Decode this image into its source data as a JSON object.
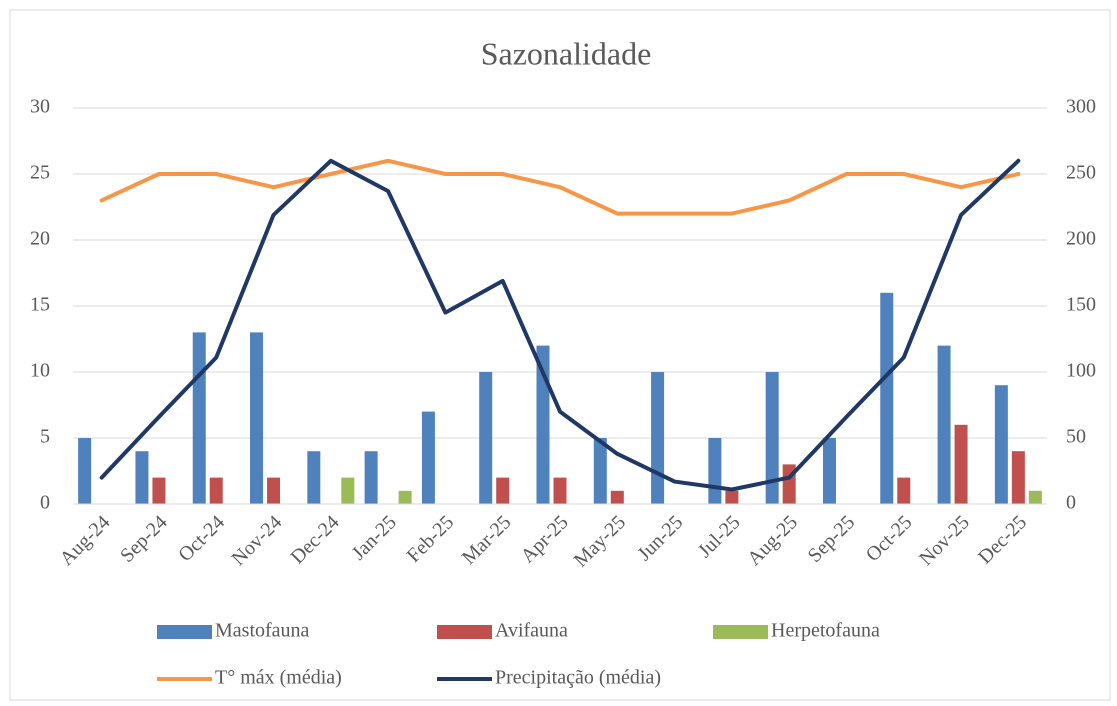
{
  "chart_data": {
    "type": "bar",
    "title": "Sazonalidade",
    "categories": [
      "Aug-24",
      "Sep-24",
      "Oct-24",
      "Nov-24",
      "Dec-24",
      "Jan-25",
      "Feb-25",
      "Mar-25",
      "Apr-25",
      "May-25",
      "Jun-25",
      "Jul-25",
      "Aug-25",
      "Sep-25",
      "Oct-25",
      "Nov-25",
      "Dec-25"
    ],
    "series": [
      {
        "name": "Mastofauna",
        "type": "bar",
        "color": "#4f81bd",
        "values": [
          5,
          4,
          13,
          13,
          4,
          4,
          7,
          10,
          12,
          5,
          10,
          5,
          10,
          5,
          16,
          12,
          9
        ]
      },
      {
        "name": "Avifauna",
        "type": "bar",
        "color": "#c0504d",
        "values": [
          0,
          2,
          2,
          2,
          0,
          0,
          0,
          2,
          2,
          1,
          0,
          1,
          3,
          0,
          2,
          6,
          4
        ]
      },
      {
        "name": "Herpetofauna",
        "type": "bar",
        "color": "#9bbb59",
        "values": [
          0,
          0,
          0,
          0,
          2,
          1,
          0,
          0,
          0,
          0,
          0,
          0,
          0,
          0,
          0,
          0,
          1
        ]
      },
      {
        "name": "T° máx (média)",
        "type": "line",
        "color": "#f79646",
        "values": [
          23,
          25,
          25,
          24,
          25,
          26,
          25,
          25,
          24,
          22,
          22,
          22,
          23,
          25,
          25,
          24,
          25
        ]
      },
      {
        "name": "Precipitação (média)",
        "type": "line",
        "axis": "y2",
        "color": "#1f3864",
        "values": [
          20,
          66,
          111,
          219,
          260,
          237,
          145,
          169,
          70,
          38,
          17,
          11,
          20,
          66,
          111,
          219,
          260
        ]
      }
    ],
    "ylim": [
      0,
      30
    ],
    "yticks": [
      0,
      5,
      10,
      15,
      20,
      25,
      30
    ],
    "y2lim": [
      0,
      300
    ],
    "y2ticks": [
      0,
      50,
      100,
      150,
      200,
      250,
      300
    ],
    "grid": true,
    "legend": "bottom"
  }
}
